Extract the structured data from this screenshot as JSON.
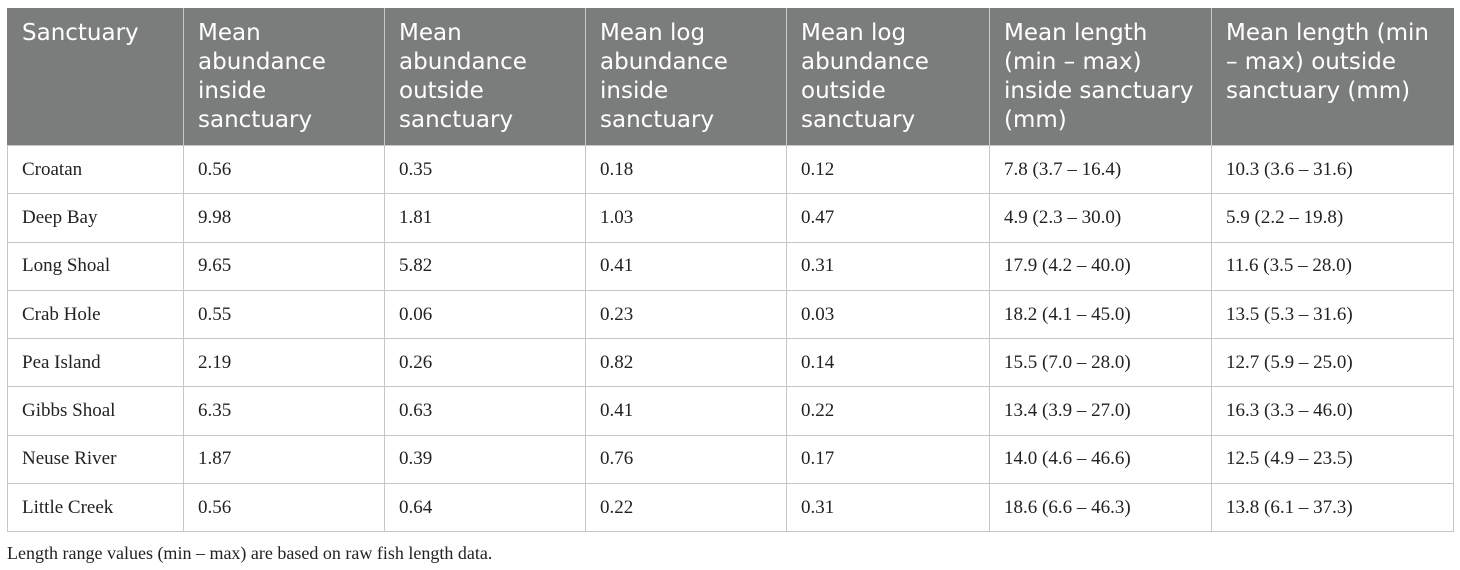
{
  "table": {
    "headers": [
      "Sanctuary",
      "Mean abundance inside sanctuary",
      "Mean abundance outside sanctuary",
      "Mean log abundance inside sanctuary",
      "Mean log abundance outside sanctuary",
      "Mean length (min – max) inside sanctuary (mm)",
      "Mean length (min – max) outside sanctuary (mm)"
    ],
    "rows": [
      [
        "Croatan",
        "0.56",
        "0.35",
        "0.18",
        "0.12",
        "7.8 (3.7 – 16.4)",
        "10.3 (3.6 – 31.6)"
      ],
      [
        "Deep Bay",
        "9.98",
        "1.81",
        "1.03",
        "0.47",
        "4.9 (2.3 – 30.0)",
        "5.9 (2.2 – 19.8)"
      ],
      [
        "Long Shoal",
        "9.65",
        "5.82",
        "0.41",
        "0.31",
        "17.9 (4.2 – 40.0)",
        "11.6 (3.5 – 28.0)"
      ],
      [
        "Crab Hole",
        "0.55",
        "0.06",
        "0.23",
        "0.03",
        "18.2 (4.1 – 45.0)",
        "13.5 (5.3 – 31.6)"
      ],
      [
        "Pea Island",
        "2.19",
        "0.26",
        "0.82",
        "0.14",
        "15.5 (7.0 – 28.0)",
        "12.7 (5.9 – 25.0)"
      ],
      [
        "Gibbs Shoal",
        "6.35",
        "0.63",
        "0.41",
        "0.22",
        "13.4 (3.9 – 27.0)",
        "16.3 (3.3 – 46.0)"
      ],
      [
        "Neuse River",
        "1.87",
        "0.39",
        "0.76",
        "0.17",
        "14.0 (4.6 – 46.6)",
        "12.5 (4.9 – 23.5)"
      ],
      [
        "Little Creek",
        "0.56",
        "0.64",
        "0.22",
        "0.31",
        "18.6 (6.6 – 46.3)",
        "13.8 (6.1 – 37.3)"
      ]
    ],
    "footnote": "Length range values (min – max) are based on raw fish length data."
  },
  "colors": {
    "header_background": "#7b7d7c",
    "header_text": "#ffffff",
    "grid_line": "#c6c6c6"
  }
}
